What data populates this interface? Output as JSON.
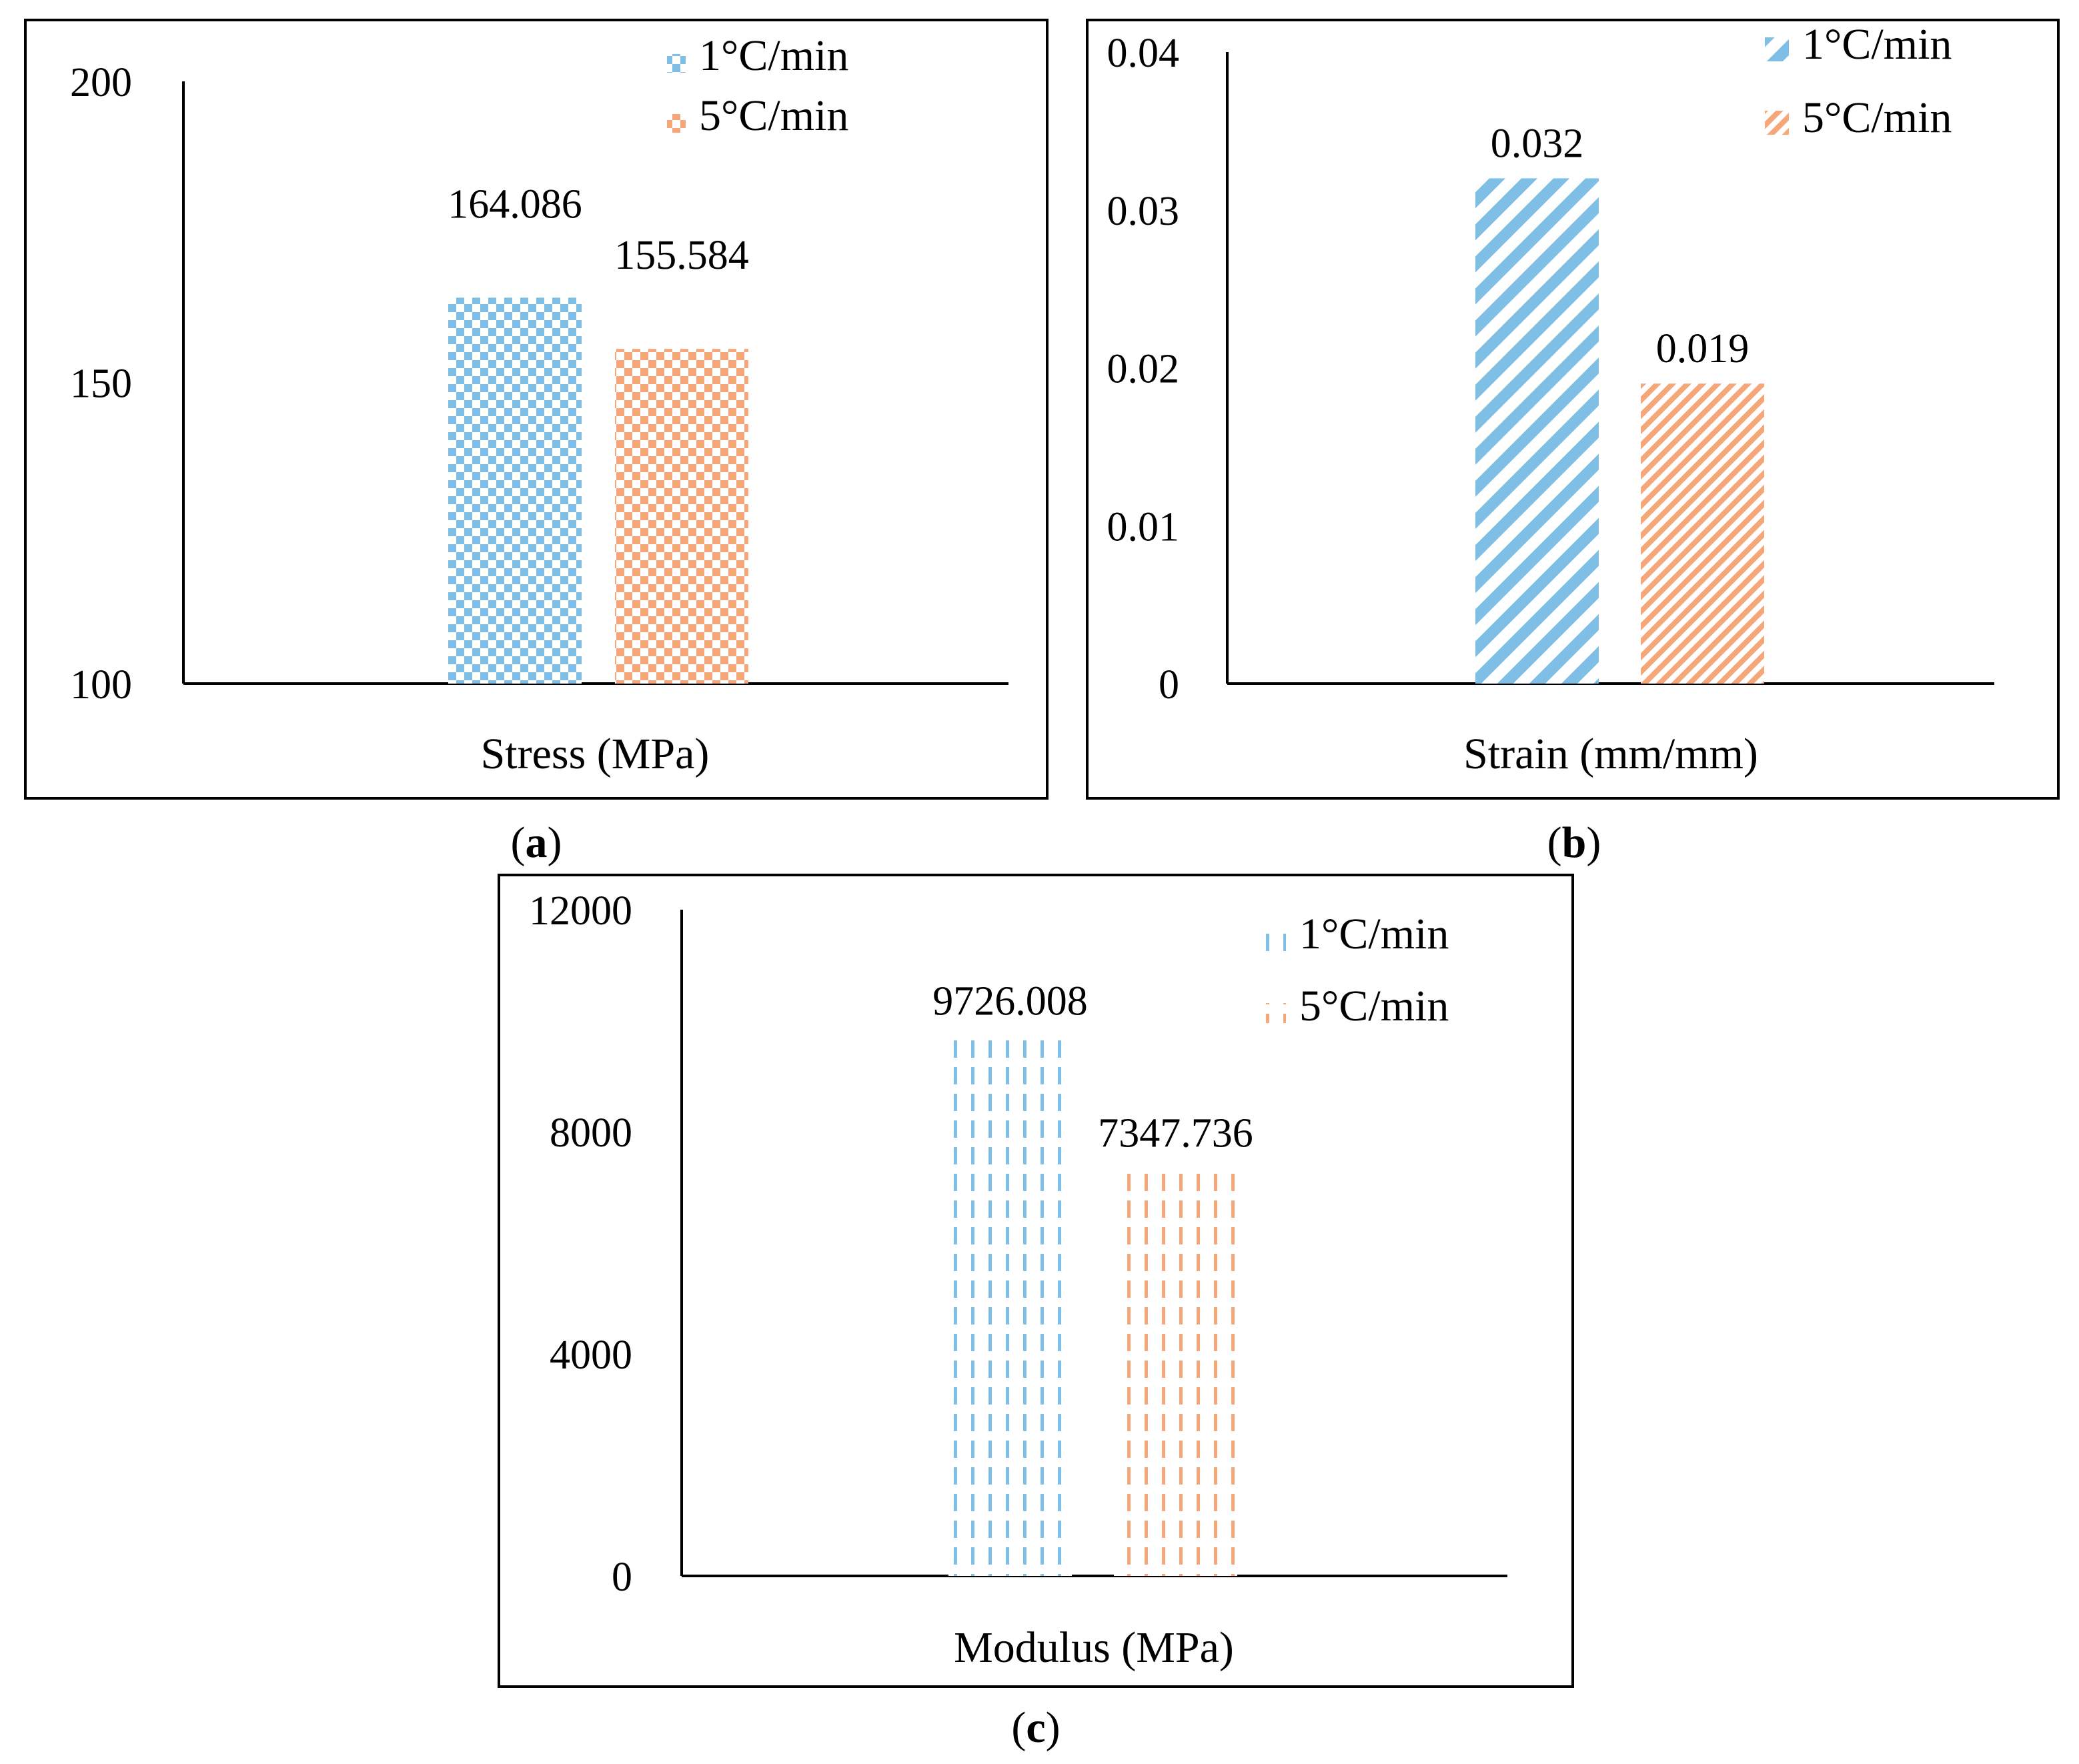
{
  "colors": {
    "series_1": "#7fbfe6",
    "series_2": "#f5a77a",
    "axis": "#000000"
  },
  "chart_data": [
    {
      "type": "bar",
      "panel_label": "a",
      "xlabel": "Stress (MPa)",
      "ylim": [
        100,
        200
      ],
      "ticks": [
        "100",
        "150",
        "200"
      ],
      "categories": [
        "Stress (MPa)"
      ],
      "series": [
        {
          "name": "1°C/min",
          "values": [
            164.086
          ],
          "label": "164.086",
          "pattern": "checker"
        },
        {
          "name": "5°C/min",
          "values": [
            155.584
          ],
          "label": "155.584",
          "pattern": "checker"
        }
      ],
      "legend_position": "top-right"
    },
    {
      "type": "bar",
      "panel_label": "b",
      "xlabel": "Strain (mm/mm)",
      "ylim": [
        0,
        0.04
      ],
      "ticks": [
        "0",
        "0.01",
        "0.02",
        "0.03",
        "0.04"
      ],
      "categories": [
        "Strain (mm/mm)"
      ],
      "series": [
        {
          "name": "1°C/min",
          "values": [
            0.032
          ],
          "label": "0.032",
          "pattern": "diagonal-wide"
        },
        {
          "name": "5°C/min",
          "values": [
            0.019
          ],
          "label": "0.019",
          "pattern": "diagonal-narrow"
        }
      ],
      "legend_position": "top-right"
    },
    {
      "type": "bar",
      "panel_label": "c",
      "xlabel": "Modulus (MPa)",
      "ylim": [
        0,
        12000
      ],
      "ticks": [
        "0",
        "4000",
        "8000",
        "12000"
      ],
      "categories": [
        "Modulus (MPa)"
      ],
      "series": [
        {
          "name": "1°C/min",
          "values": [
            9726.008
          ],
          "label": "9726.008",
          "pattern": "dashed-vertical"
        },
        {
          "name": "5°C/min",
          "values": [
            7347.736
          ],
          "label": "7347.736",
          "pattern": "dashed-vertical"
        }
      ],
      "legend_position": "top-right"
    }
  ]
}
